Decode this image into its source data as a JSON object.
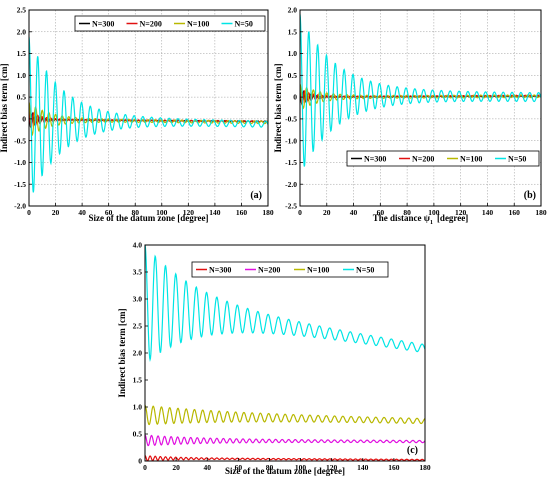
{
  "colors": {
    "N=300_a": "#000000",
    "N=300": "#e01010",
    "N=200": "#e010e0",
    "N=100": "#b8b800",
    "N=50": "#00e5e5",
    "red": "#e01010"
  },
  "chart_data": [
    {
      "panel": "(a)",
      "type": "line",
      "xlabel": "Size of the datum zone [degree]",
      "ylabel": "Indirect bias term [cm]",
      "xlim": [
        0,
        180
      ],
      "ylim": [
        -2.0,
        2.5
      ],
      "xticks": [
        "0",
        "20",
        "40",
        "60",
        "80",
        "100",
        "120",
        "140",
        "160",
        "180"
      ],
      "yticks": [
        "-2.0",
        "-1.5",
        "-1.0",
        "-0.5",
        "0",
        "0.5",
        "1.0",
        "1.5",
        "2.0",
        "2.5"
      ],
      "grid": true,
      "legend_position": "top",
      "series": [
        {
          "name": "N=300",
          "color": "#000000",
          "base": -0.02,
          "end": -0.06,
          "amp0": 0.22,
          "decay": 5,
          "ampEnd": 0.01,
          "period": 2.5
        },
        {
          "name": "N=200",
          "color": "#e01010",
          "base": -0.02,
          "end": -0.06,
          "amp0": 0.22,
          "decay": 8,
          "ampEnd": 0.015,
          "period": 3.3
        },
        {
          "name": "N=100",
          "color": "#b8b800",
          "base": -0.02,
          "end": -0.08,
          "amp0": 0.4,
          "decay": 15,
          "ampEnd": 0.03,
          "period": 5.0
        },
        {
          "name": "N=50",
          "color": "#00e5e5",
          "base": -0.02,
          "end": -0.12,
          "amp0": 1.9,
          "decay": 24,
          "ampEnd": 0.07,
          "period": 6.6
        }
      ]
    },
    {
      "panel": "(b)",
      "type": "line",
      "xlabel": "The distance ψ",
      "xlabel_sub": "1",
      "xlabel_unit": "[degree]",
      "ylabel": "Indirect bias term [cm]",
      "xlim": [
        0,
        180
      ],
      "ylim": [
        -2.5,
        2.0
      ],
      "xticks": [
        "0",
        "20",
        "40",
        "60",
        "80",
        "100",
        "120",
        "140",
        "160",
        "180"
      ],
      "yticks": [
        "-2.5",
        "-2.0",
        "-1.5",
        "-1.0",
        "-0.5",
        "0",
        "0.5",
        "1.0",
        "1.5",
        "2.0"
      ],
      "grid": true,
      "legend_position": "bottom",
      "series": [
        {
          "name": "N=300",
          "color": "#000000",
          "base": 0.0,
          "end": 0.02,
          "amp0": 0.18,
          "decay": 6,
          "ampEnd": 0.01,
          "period": 2.5
        },
        {
          "name": "N=200",
          "color": "#e01010",
          "base": 0.0,
          "end": 0.03,
          "amp0": 0.2,
          "decay": 8,
          "ampEnd": 0.015,
          "period": 3.3
        },
        {
          "name": "N=100",
          "color": "#b8b800",
          "base": 0.0,
          "end": 0.02,
          "amp0": 0.3,
          "decay": 14,
          "ampEnd": 0.03,
          "period": 5.0
        },
        {
          "name": "N=50",
          "color": "#00e5e5",
          "base": 0.05,
          "end": 0.0,
          "amp0": 1.85,
          "decay": 26,
          "ampEnd": 0.1,
          "period": 6.6
        }
      ]
    },
    {
      "panel": "(c)",
      "type": "line",
      "xlabel": "Size of the datum zone [degree]",
      "ylabel": "Indirect bias term [cm]",
      "xlim": [
        0,
        180
      ],
      "ylim": [
        0,
        4.0
      ],
      "xticks": [
        "0",
        "20",
        "40",
        "60",
        "80",
        "100",
        "120",
        "140",
        "160",
        "180"
      ],
      "yticks": [
        "0",
        "0.5",
        "1.0",
        "1.5",
        "2.0",
        "2.5",
        "3.0",
        "3.5",
        "4.0"
      ],
      "grid": false,
      "legend_position": "top",
      "series": [
        {
          "name": "N=300",
          "color": "#e01010",
          "base": 0.05,
          "end": 0.02,
          "amp0": 0.05,
          "decay": 20,
          "ampEnd": 0.01,
          "period": 3.3
        },
        {
          "name": "N=200",
          "color": "#e010e0",
          "base": 0.38,
          "end": 0.36,
          "amp0": 0.1,
          "decay": 40,
          "ampEnd": 0.02,
          "period": 4.2
        },
        {
          "name": "N=100",
          "color": "#b8b800",
          "base": 0.85,
          "end": 0.74,
          "amp0": 0.18,
          "decay": 60,
          "ampEnd": 0.04,
          "period": 5.3
        },
        {
          "name": "N=50",
          "color": "#00e5e5",
          "base": 2.9,
          "end": 2.08,
          "amp0": 1.1,
          "decay": 35,
          "ampEnd": 0.07,
          "period": 6.6
        }
      ]
    }
  ]
}
